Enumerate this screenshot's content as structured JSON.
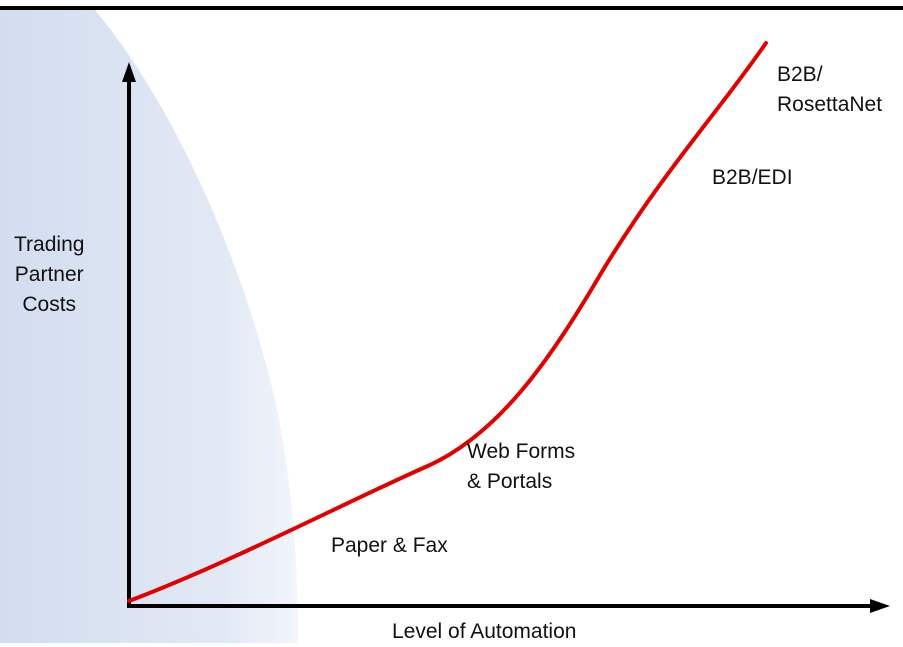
{
  "axes": {
    "y_label": "Trading\nPartner\nCosts",
    "x_label": "Level of Automation"
  },
  "annotations": {
    "paper_fax": "Paper & Fax",
    "web_forms": "Web Forms\n& Portals",
    "b2b_edi": "B2B/EDI",
    "b2b_rosettanet": "B2B/\nRosettaNet"
  },
  "colors": {
    "curve": "#e00000",
    "axes": "#000000",
    "background_shape": "#dde5f3"
  }
}
